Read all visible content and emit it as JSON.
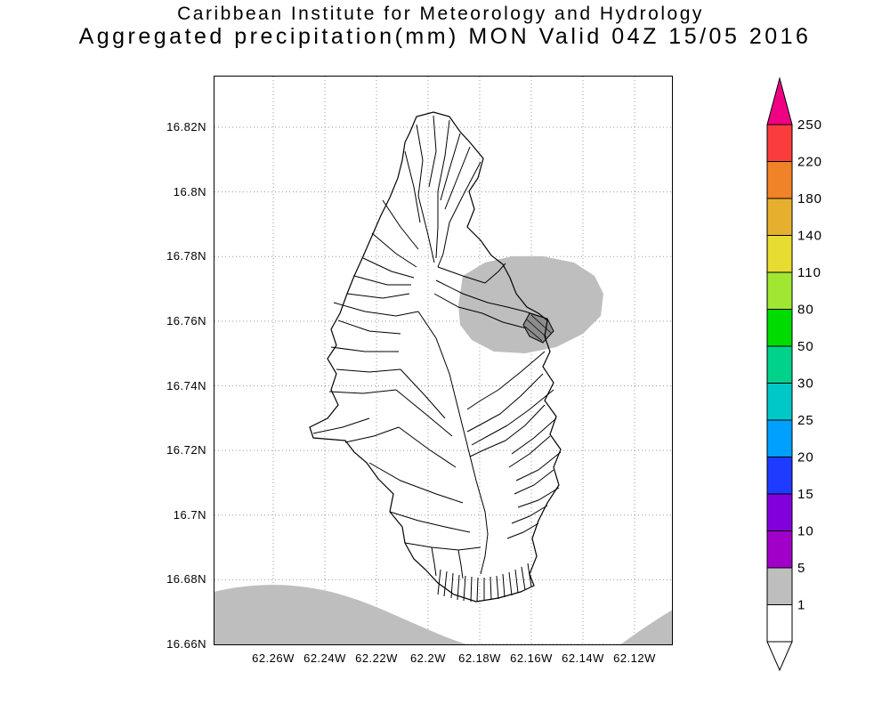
{
  "header": {
    "line1": "Caribbean Institute for Meteorology and Hydrology",
    "line2": "Aggregated precipitation(mm) MON Valid 04Z 15/05 2016"
  },
  "chart_data": {
    "type": "map",
    "title": "Caribbean Institute for Meteorology and Hydrology",
    "subtitle": "Aggregated precipitation(mm) MON Valid 04Z 15/05 2016",
    "variable": "Aggregated precipitation (mm)",
    "region_code": "MON",
    "valid": "04Z 15/05 2016",
    "grid": "dotted",
    "y_axis": {
      "ticks": [
        "16.82N",
        "16.8N",
        "16.78N",
        "16.76N",
        "16.74N",
        "16.72N",
        "16.7N",
        "16.68N",
        "16.66N"
      ]
    },
    "x_axis": {
      "ticks": [
        "62.26W",
        "62.24W",
        "62.22W",
        "62.2W",
        "62.18W",
        "62.16W",
        "62.14W",
        "62.12W"
      ]
    },
    "colorbar": {
      "orientation": "vertical",
      "labels": [
        "250",
        "220",
        "180",
        "140",
        "110",
        "80",
        "50",
        "30",
        "25",
        "20",
        "15",
        "10",
        "5",
        "1"
      ],
      "band_colors_top_to_bottom": [
        "#fa3c3c",
        "#f08228",
        "#e6af2d",
        "#e6dc32",
        "#a0e632",
        "#00dc00",
        "#00d28c",
        "#00c8c8",
        "#00a0ff",
        "#1e3cff",
        "#8200dc",
        "#a000c8",
        "#bebebe",
        "#ffffff"
      ],
      "arrow_top_color": "#f00082",
      "arrow_bottom_color": "#ffffff"
    },
    "shaded_values": {
      "color": "#bebebe",
      "band": "1-5",
      "regions": [
        "northeast-of-island",
        "southwest-map-corner",
        "southeast-map-corner"
      ]
    }
  }
}
